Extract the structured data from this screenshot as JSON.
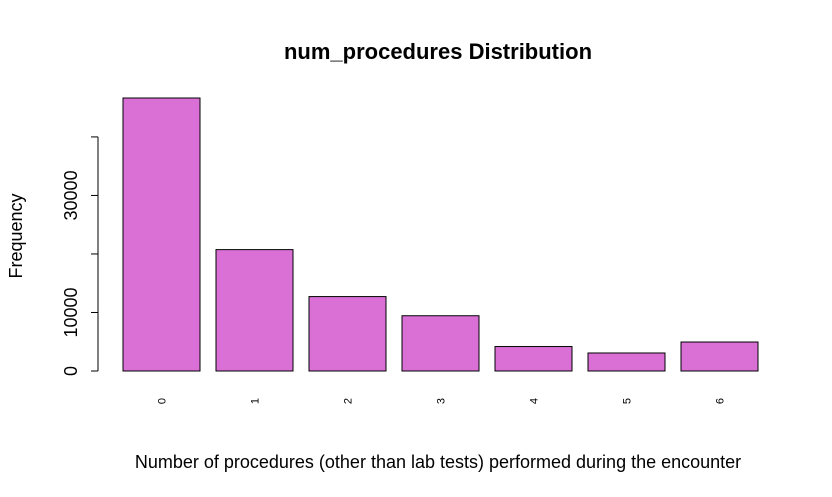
{
  "chart_data": {
    "type": "bar",
    "title": "num_procedures Distribution",
    "xlabel": "Number of procedures (other than lab tests) performed during the encounter",
    "ylabel": "Frequency",
    "categories": [
      "0",
      "1",
      "2",
      "3",
      "4",
      "5",
      "6"
    ],
    "values": [
      46652,
      20742,
      12717,
      9443,
      4180,
      3078,
      4954
    ],
    "ylim": [
      0,
      46652
    ],
    "yticks": [
      0,
      10000,
      20000,
      30000,
      40000
    ],
    "ytick_labels": [
      "0",
      "10000",
      "",
      "30000",
      ""
    ],
    "bar_color": "#DA70D6",
    "bar_border_color": "#000000",
    "grid": false,
    "legend": "none"
  }
}
